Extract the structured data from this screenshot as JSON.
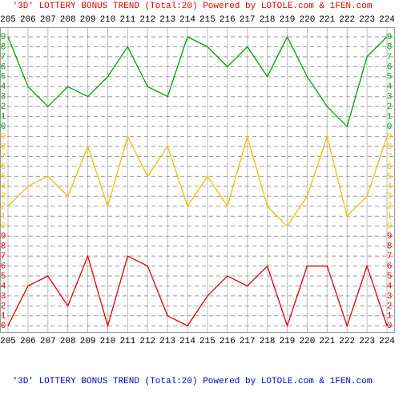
{
  "chart_data": {
    "type": "line",
    "title": "'3D' LOTTERY BONUS TREND (Total:20)  Powered by LOTOLE.com & 1FEN.com",
    "categories": [
      "205",
      "206",
      "207",
      "208",
      "209",
      "210",
      "211",
      "212",
      "213",
      "214",
      "215",
      "216",
      "217",
      "218",
      "219",
      "220",
      "221",
      "222",
      "223",
      "224"
    ],
    "series": [
      {
        "color": "#00a000",
        "values": [
          9,
          4,
          2,
          4,
          3,
          5,
          8,
          4,
          3,
          9,
          8,
          6,
          8,
          5,
          9,
          5,
          2,
          0,
          7,
          9
        ]
      },
      {
        "color": "#f0c000",
        "values": [
          2,
          4,
          5,
          3,
          8,
          2,
          9,
          5,
          8,
          2,
          5,
          2,
          9,
          2,
          0,
          3,
          9,
          1,
          3,
          9
        ]
      },
      {
        "color": "#e00000",
        "values": [
          0,
          4,
          5,
          2,
          7,
          0,
          7,
          6,
          1,
          0,
          3,
          5,
          4,
          6,
          0,
          6,
          6,
          0,
          6,
          0
        ]
      }
    ],
    "ylim": [
      0,
      9
    ],
    "yticks": [
      0,
      1,
      2,
      3,
      4,
      5,
      6,
      7,
      8,
      9
    ],
    "grid": true,
    "title_color": "#e00000",
    "caption_color": "#0000c0"
  }
}
